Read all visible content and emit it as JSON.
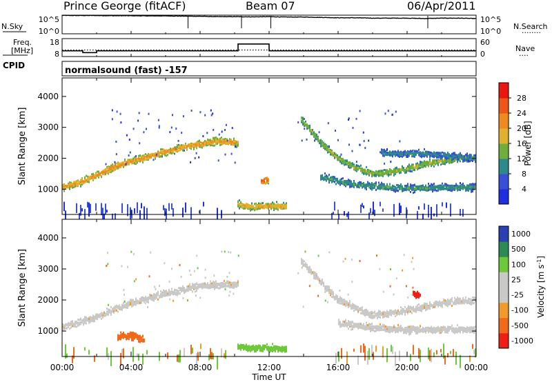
{
  "header": {
    "station": "Prince George (fitACF)",
    "beam": "Beam 07",
    "date": "06/Apr/2011"
  },
  "strip_labels": {
    "nsky": "N.Sky",
    "nsearch": "N.Search",
    "nsearch_line": "........",
    "freq_line1": "Freq.",
    "freq_line2": "[MHz]",
    "nave": "Nave",
    "nave_line": "....",
    "cpid": "CPID",
    "cpid_text": "normalsound (fast) -157"
  },
  "colors": {
    "power_scale": [
      "#1f2fe0",
      "#3a4fd8",
      "#2e8a8a",
      "#6fae3c",
      "#e0b030",
      "#f08a20",
      "#ee5518",
      "#e81810"
    ],
    "velocity_scale": [
      "#ee1f14",
      "#f06a1a",
      "#f39a2c",
      "#c9c9c7",
      "#c9c9c7",
      "#6ec93a",
      "#2c8a55",
      "#2a3fb0"
    ],
    "velocity_scatter": "#c9c9c7",
    "axis": "#000000"
  },
  "chart_data": [
    {
      "type": "line",
      "name": "noise_sky_search_strip",
      "left_axis_label": "N.Sky",
      "left_ticks": [
        "10^5",
        "10^0"
      ],
      "right_axis_label": "N.Search",
      "right_ticks": [
        "10^5",
        "10^0"
      ],
      "x_range_hours": [
        0,
        24
      ],
      "series": [
        {
          "x": [
            0,
            0.5,
            1,
            2,
            3,
            4,
            5,
            6,
            7,
            8,
            9,
            10,
            11,
            12,
            13,
            14,
            15,
            16,
            17,
            18,
            19,
            20,
            21,
            22,
            23,
            24
          ],
          "values": [
            4.95,
            4.9,
            4.9,
            4.9,
            4.85,
            4.85,
            4.8,
            4.8,
            4.75,
            4.7,
            4.6,
            4.6,
            4.55,
            4.6,
            4.5,
            4.5,
            4.4,
            4.3,
            4.3,
            4.2,
            4.2,
            4.2,
            4.1,
            4.2,
            4.2,
            4.1
          ]
        }
      ]
    },
    {
      "type": "line",
      "name": "freq_nave_strip",
      "left_axis_label": "Freq. [MHz]",
      "left_ticks": [
        "18",
        "8"
      ],
      "right_axis_label": "Nave",
      "right_ticks": [
        "60",
        "0"
      ],
      "x_range_hours": [
        0,
        24
      ],
      "series": [
        {
          "name": "frequency",
          "x": [
            0,
            1.2,
            1.2,
            2.0,
            2.0,
            10.2,
            10.2,
            12.0,
            12.0,
            24
          ],
          "values": [
            11.2,
            11.2,
            10.2,
            10.2,
            11.2,
            11.2,
            15.0,
            15.0,
            11.2,
            11.2
          ]
        },
        {
          "name": "nave",
          "x": [
            0,
            24
          ],
          "values": [
            22,
            22
          ]
        }
      ]
    },
    {
      "type": "heatmap",
      "title": "",
      "ylabel": "Slant Range [km]",
      "y_ticks": [
        1000,
        2000,
        3000,
        4000
      ],
      "ylim": [
        180,
        4600
      ],
      "x_range_hours": [
        0,
        24
      ],
      "colorbar_label": "Power [dB]",
      "colorbar_ticks": [
        4,
        8,
        12,
        16,
        20,
        24,
        28
      ],
      "colorbar_range": [
        0,
        32
      ],
      "features": [
        {
          "x": [
            0,
            1,
            2,
            3,
            4,
            5,
            6,
            7,
            8,
            9,
            10.2
          ],
          "y": [
            1050,
            1200,
            1450,
            1700,
            1900,
            2050,
            2200,
            2350,
            2450,
            2550,
            2500
          ],
          "power": 22
        },
        {
          "x": [
            10.2,
            11,
            12,
            13
          ],
          "y": [
            500,
            420,
            450,
            420
          ],
          "power": 20
        },
        {
          "x": [
            11.5,
            12
          ],
          "y": [
            1250,
            1300
          ],
          "power": 26
        },
        {
          "x": [
            13.8,
            15,
            16,
            17,
            18,
            19,
            20,
            21,
            22,
            23,
            24
          ],
          "y": [
            3300,
            2500,
            2000,
            1700,
            1500,
            1550,
            1650,
            1800,
            1900,
            2000,
            2000
          ],
          "power": 16
        },
        {
          "x": [
            15,
            16,
            17,
            18,
            19,
            20,
            21,
            22,
            23,
            24
          ],
          "y": [
            1400,
            1250,
            1150,
            1100,
            1050,
            1030,
            1030,
            1050,
            1050,
            1050
          ],
          "power": 12
        },
        {
          "x": [
            18.5,
            19,
            20,
            21,
            22,
            23,
            24
          ],
          "y": [
            2200,
            2150,
            2150,
            2150,
            2100,
            2050,
            2000
          ],
          "power": 10
        }
      ]
    },
    {
      "type": "heatmap",
      "title": "",
      "xlabel": "Time UT",
      "ylabel": "Slant Range [km]",
      "y_ticks": [
        1000,
        2000,
        3000,
        4000
      ],
      "ylim": [
        180,
        4600
      ],
      "x_ticks": [
        "00:00",
        "04:00",
        "08:00",
        "12:00",
        "16:00",
        "20:00",
        "00:00"
      ],
      "x_range_hours": [
        0,
        24
      ],
      "colorbar_label": "Velocity [m s^-1]",
      "colorbar_label_parts": [
        "Velocity",
        "[m s",
        "-1",
        "]"
      ],
      "colorbar_ticks": [
        "1000",
        "500",
        "100",
        "25",
        "-25",
        "-100",
        "-500",
        "-1000"
      ],
      "features": [
        {
          "x": [
            0,
            2,
            4,
            6,
            8,
            10.2
          ],
          "y": [
            1100,
            1450,
            1900,
            2200,
            2450,
            2500
          ],
          "velocity": 0
        },
        {
          "x": [
            3.2,
            4,
            4.8
          ],
          "y": [
            800,
            850,
            700
          ],
          "velocity": -300
        },
        {
          "x": [
            10.2,
            11,
            12,
            13
          ],
          "y": [
            500,
            450,
            450,
            420
          ],
          "velocity": 200
        },
        {
          "x": [
            13.8,
            16,
            18,
            20,
            22,
            24
          ],
          "y": [
            3300,
            2000,
            1500,
            1650,
            1900,
            2000
          ],
          "velocity": 0
        },
        {
          "x": [
            16,
            18,
            20,
            22,
            24
          ],
          "y": [
            1250,
            1100,
            1030,
            1050,
            1050
          ],
          "velocity": 0
        },
        {
          "x": [
            20.3,
            20.8
          ],
          "y": [
            2200,
            2150
          ],
          "velocity": -700
        }
      ]
    }
  ]
}
